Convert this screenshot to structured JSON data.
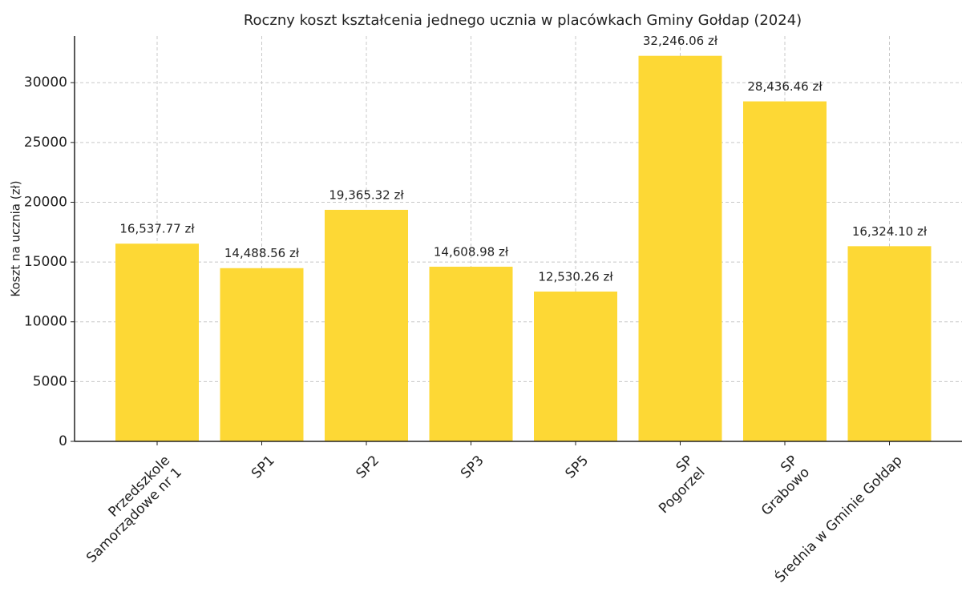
{
  "chart_data": {
    "type": "bar",
    "title": "Roczny koszt kształcenia jednego ucznia w placówkach Gminy Gołdap (2024)",
    "ylabel": "Koszt na ucznia (zł)",
    "categories": [
      "Przedszkole\nSamorządowe nr 1",
      "SP1",
      "SP2",
      "SP3",
      "SP5",
      "SP\nPogorzel",
      "SP\nGrabowo",
      "Średnia w Gminie Gołdap"
    ],
    "values": [
      16537.77,
      14488.56,
      19365.32,
      14608.98,
      12530.26,
      32246.06,
      28436.46,
      16324.1
    ],
    "value_labels": [
      "16,537.77 zł",
      "14,488.56 zł",
      "19,365.32 zł",
      "14,608.98 zł",
      "12,530.26 zł",
      "32,246.06 zł",
      "28,436.46 zł",
      "16,324.10 zł"
    ],
    "color": "#fdd835",
    "ylim": [
      0,
      33900
    ],
    "yticks": [
      0,
      5000,
      10000,
      15000,
      20000,
      25000,
      30000
    ],
    "grid": true
  }
}
